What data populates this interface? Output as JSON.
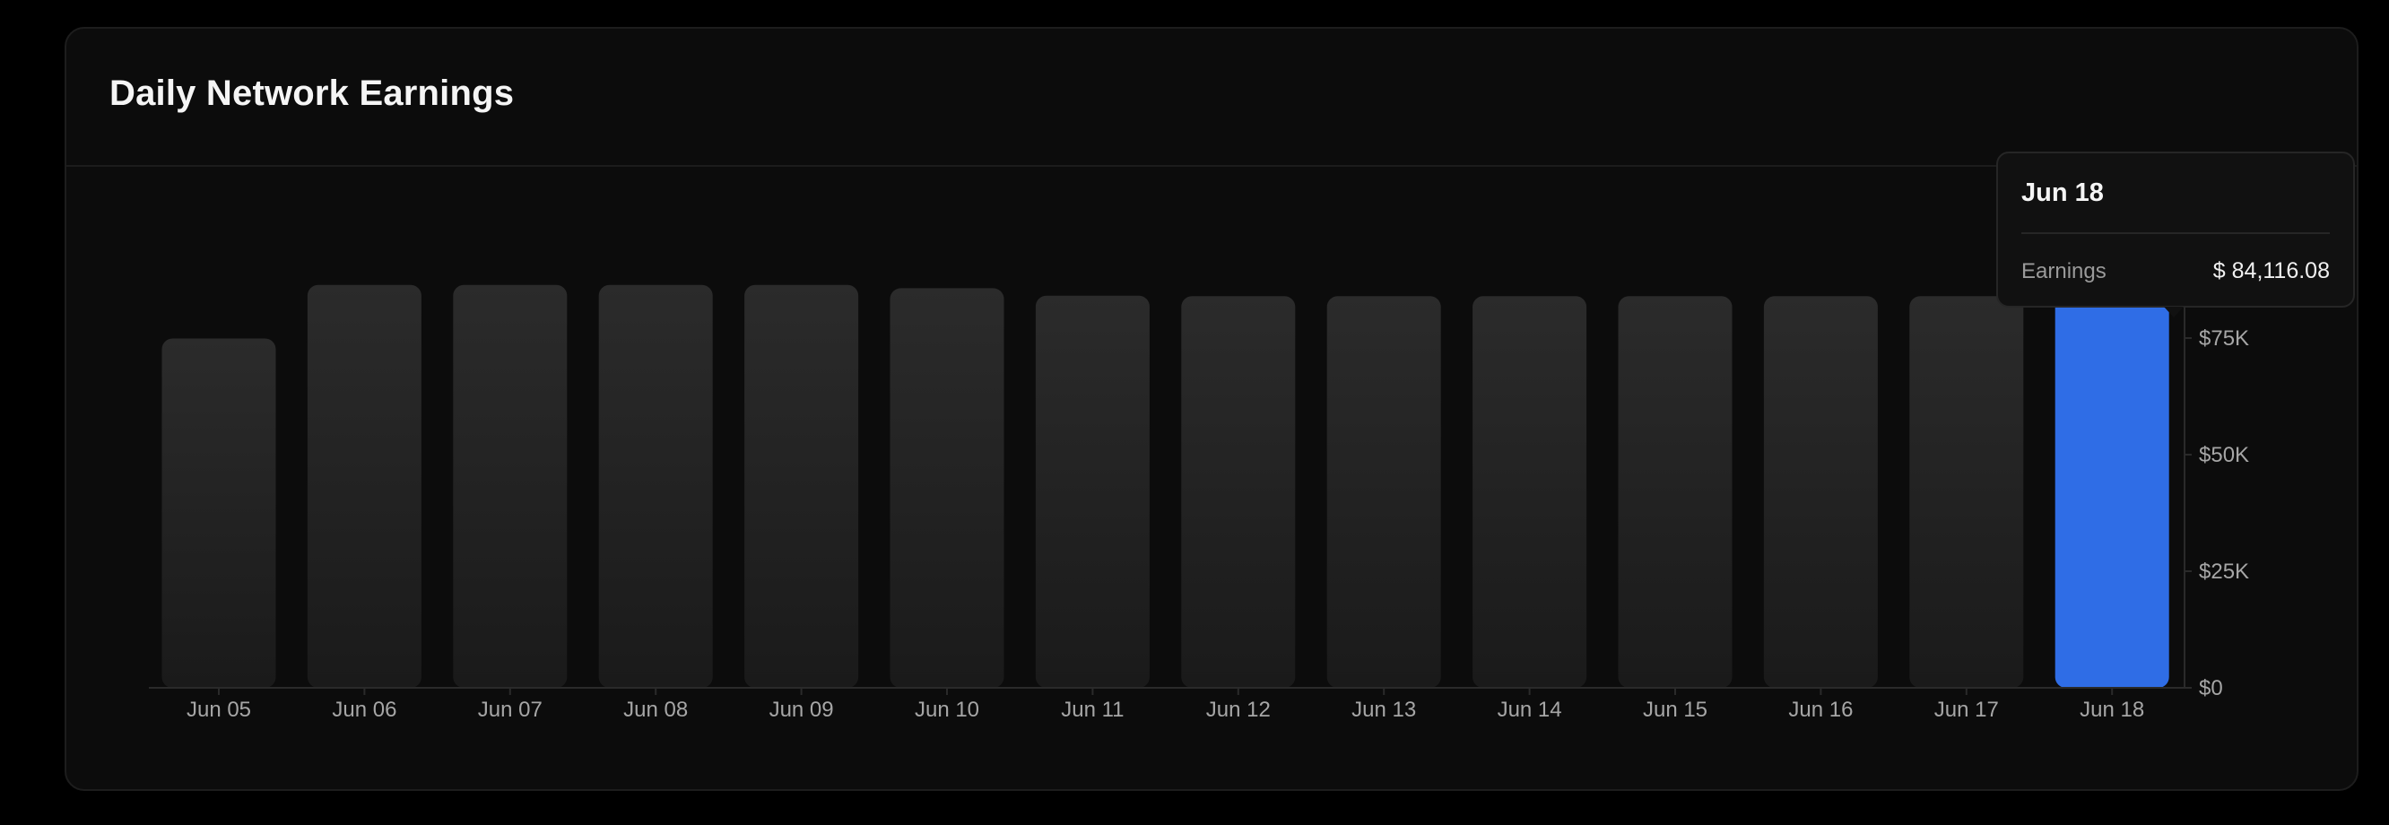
{
  "card": {
    "title": "Daily Network Earnings"
  },
  "chart_data": {
    "type": "bar",
    "title": "Daily Network Earnings",
    "categories": [
      "Jun 05",
      "Jun 06",
      "Jun 07",
      "Jun 08",
      "Jun 09",
      "Jun 10",
      "Jun 11",
      "Jun 12",
      "Jun 13",
      "Jun 14",
      "Jun 15",
      "Jun 16",
      "Jun 17",
      "Jun 18"
    ],
    "series": [
      {
        "values": [
          74900,
          86400,
          86400,
          86400,
          86400,
          85700,
          84100,
          84000,
          84000,
          84000,
          84000,
          84000,
          84000,
          84116.08
        ]
      }
    ],
    "ylim": [
      0,
      100000
    ],
    "yticks": [
      {
        "value": 0,
        "label": "$0"
      },
      {
        "value": 25000,
        "label": "$25K"
      },
      {
        "value": 50000,
        "label": "$50K"
      },
      {
        "value": 75000,
        "label": "$75K"
      }
    ],
    "y_axis_position": "right",
    "grid": false,
    "highlighted_index": 13,
    "colors": {
      "bar_top": "#2b2b2b",
      "bar_bottom": "#1a1a1a",
      "highlight": "#2f6de6",
      "axis": "#2a2a2a",
      "tick_label": "#a6a6a6"
    }
  },
  "tooltip": {
    "date": "Jun 18",
    "label": "Earnings",
    "value": "$ 84,116.08"
  }
}
